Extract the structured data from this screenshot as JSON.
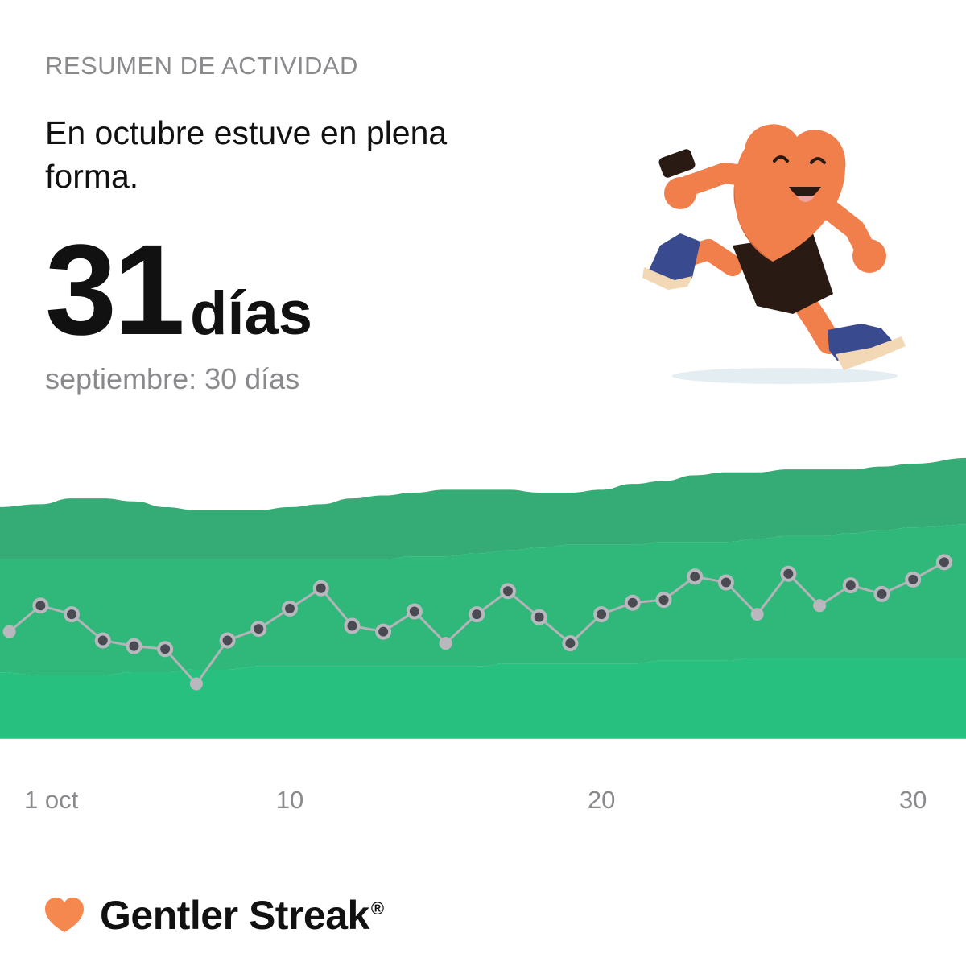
{
  "summary": {
    "eyebrow": "RESUMEN DE ACTIVIDAD",
    "headline": "En octubre estuve en plena forma.",
    "count": "31",
    "unit": "días",
    "comparison": "septiembre: 30 días"
  },
  "brand": {
    "name": "Gentler Streak",
    "registered": "®"
  },
  "illustration": {
    "subject": "running-heart-mascot-icon"
  },
  "colors": {
    "band_top": "#35ab76",
    "band_middle": "#2fb87a",
    "band_bottom": "#27c07e",
    "line": "#b3b3b8",
    "point_dark": "#4a4a52",
    "point_light": "#b8b8be",
    "mascot": "#f07f4c",
    "logo": "#f5884f"
  },
  "chart_data": {
    "type": "line",
    "x": [
      1,
      2,
      3,
      4,
      5,
      6,
      7,
      8,
      9,
      10,
      11,
      12,
      13,
      14,
      15,
      16,
      17,
      18,
      19,
      20,
      21,
      22,
      23,
      24,
      25,
      26,
      27,
      28,
      29,
      30,
      31
    ],
    "x_tick_labels": [
      {
        "x": 1,
        "label": "1 oct"
      },
      {
        "x": 10,
        "label": "10"
      },
      {
        "x": 20,
        "label": "20"
      },
      {
        "x": 30,
        "label": "30"
      }
    ],
    "series": [
      {
        "values": [
          37,
          46,
          43,
          34,
          32,
          31,
          19,
          34,
          38,
          45,
          52,
          39,
          37,
          44,
          33,
          43,
          51,
          42,
          33,
          43,
          47,
          48,
          56,
          54,
          43,
          57,
          46,
          53,
          50,
          55,
          61
        ],
        "marker_style": [
          "light",
          "dark",
          "dark",
          "dark",
          "dark",
          "dark",
          "light",
          "dark",
          "dark",
          "dark",
          "dark",
          "dark",
          "dark",
          "dark",
          "light",
          "dark",
          "dark",
          "dark",
          "dark",
          "dark",
          "dark",
          "dark",
          "dark",
          "dark",
          "light",
          "dark",
          "light",
          "dark",
          "dark",
          "dark",
          "dark"
        ]
      }
    ],
    "bands": {
      "upper_top": [
        80,
        81,
        83,
        83,
        82,
        80,
        79,
        79,
        79,
        80,
        81,
        83,
        84,
        85,
        86,
        86,
        86,
        85,
        85,
        86,
        88,
        89,
        91,
        92,
        92,
        93,
        93,
        93,
        94,
        95,
        97
      ],
      "upper_bottom": [
        62,
        62,
        62,
        62,
        62,
        62,
        62,
        62,
        62,
        62,
        62,
        62,
        62,
        63,
        63,
        64,
        65,
        66,
        67,
        67,
        67,
        68,
        68,
        68,
        69,
        70,
        70,
        71,
        72,
        73,
        74
      ],
      "lower_top": [
        23,
        22,
        22,
        22,
        23,
        23,
        24,
        24,
        25,
        25,
        25,
        25,
        25,
        25,
        25,
        25,
        26,
        26,
        26,
        26,
        26,
        27,
        27,
        27,
        28,
        28,
        28,
        28,
        28,
        28,
        28
      ],
      "lower_bottom": [
        0,
        0,
        0,
        0,
        0,
        0,
        0,
        0,
        0,
        0,
        0,
        0,
        0,
        0,
        0,
        0,
        0,
        0,
        0,
        0,
        0,
        0,
        0,
        0,
        0,
        0,
        0,
        0,
        0,
        0,
        0
      ]
    },
    "ylim": [
      -2,
      105
    ],
    "xlim": [
      0.7,
      31.7
    ],
    "grid": false,
    "legend": "none",
    "title": "",
    "xlabel": "",
    "ylabel": ""
  }
}
